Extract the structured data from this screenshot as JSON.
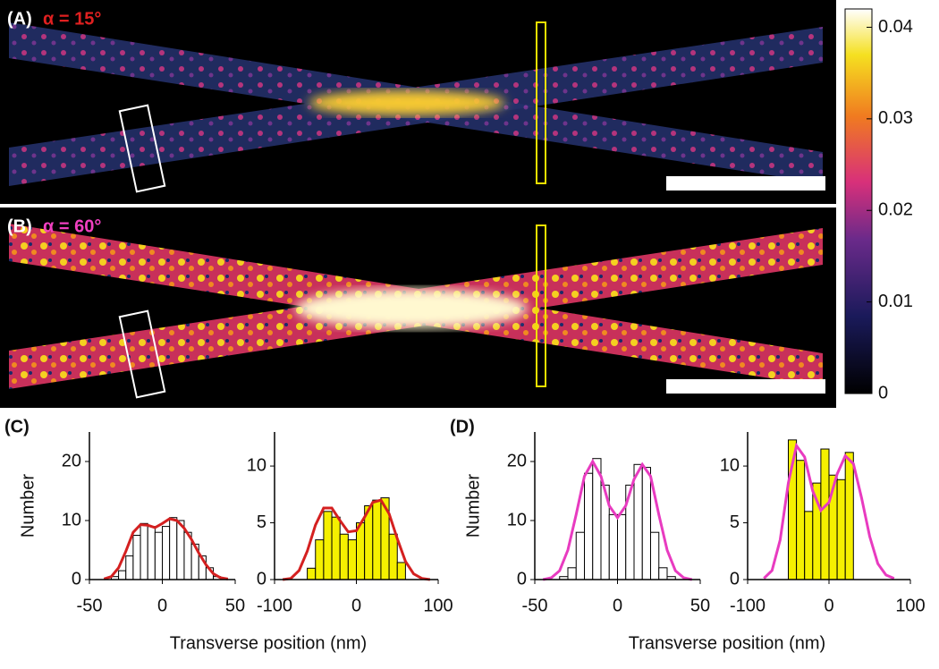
{
  "panels": [
    {
      "label": "(A)",
      "annotation": "α = 15°",
      "color": "#e02020"
    },
    {
      "label": "(B)",
      "annotation": "α = 60°",
      "color": "#f040c0"
    }
  ],
  "colorbar": {
    "ylim": [
      0,
      0.042
    ],
    "yticks": [
      0,
      0.01,
      0.02,
      0.03,
      0.04
    ]
  },
  "chart_data": [
    {
      "type": "histogram",
      "label": "(C)",
      "ylabel": "Number",
      "xlabel": "Transverse position (nm)",
      "color": "#ffffff",
      "bins": [
        -35,
        -30,
        -25,
        -20,
        -15,
        -10,
        -5,
        0,
        5,
        10,
        15,
        20,
        25,
        30,
        35,
        40
      ],
      "values": [
        0.5,
        1.5,
        4,
        7.5,
        9.5,
        9,
        8,
        9,
        10.5,
        10,
        8,
        6,
        4,
        2,
        0.5
      ],
      "fit": {
        "color": "#d42020",
        "x": [
          -40,
          -35,
          -30,
          -25,
          -20,
          -15,
          -10,
          -5,
          0,
          5,
          10,
          15,
          20,
          25,
          30,
          35,
          40,
          45
        ],
        "values": [
          0.1,
          0.5,
          2,
          4.8,
          8,
          9.3,
          9.2,
          8.8,
          9.5,
          10.3,
          10,
          8.7,
          6.8,
          4.5,
          2.5,
          1,
          0.3,
          0.1
        ]
      },
      "xlim": [
        -50,
        50
      ],
      "xticks": [
        -50,
        0,
        50
      ],
      "ylim": [
        0,
        25
      ],
      "yticks": [
        0,
        10,
        20
      ]
    },
    {
      "type": "histogram",
      "color": "#f5f000",
      "bins": [
        -60,
        -50,
        -40,
        -30,
        -20,
        -10,
        0,
        10,
        20,
        30,
        40,
        50,
        60
      ],
      "values": [
        1,
        3.5,
        6,
        5.5,
        4,
        3.5,
        5,
        6.5,
        7,
        7.2,
        4,
        1.5
      ],
      "fit": {
        "color": "#d42020",
        "x": [
          -90,
          -80,
          -70,
          -60,
          -50,
          -40,
          -30,
          -20,
          -10,
          0,
          10,
          20,
          30,
          40,
          50,
          60,
          70,
          80,
          90
        ],
        "values": [
          0,
          0.1,
          0.8,
          2.5,
          4.8,
          6.3,
          6.3,
          5.2,
          4.2,
          4.3,
          5.5,
          6.8,
          7,
          5.8,
          3.6,
          1.6,
          0.5,
          0.1,
          0
        ]
      },
      "xlim": [
        -100,
        100
      ],
      "xticks": [
        -100,
        0,
        100
      ],
      "ylim": [
        0,
        13
      ],
      "yticks": [
        0,
        5,
        10
      ]
    },
    {
      "type": "histogram",
      "label": "(D)",
      "ylabel": "Number",
      "xlabel": "Transverse position (nm)",
      "color": "#ffffff",
      "bins": [
        -35,
        -30,
        -25,
        -20,
        -15,
        -10,
        -5,
        0,
        5,
        10,
        15,
        20,
        25,
        30,
        35
      ],
      "values": [
        0.5,
        2,
        8,
        18,
        20.5,
        16,
        11,
        11,
        16,
        19.5,
        19,
        8,
        2,
        0.5
      ],
      "fit": {
        "color": "#e83bc0",
        "x": [
          -45,
          -40,
          -35,
          -30,
          -25,
          -20,
          -15,
          -10,
          -5,
          0,
          5,
          10,
          15,
          20,
          25,
          30,
          35,
          40,
          45
        ],
        "values": [
          0,
          0.3,
          1.5,
          5,
          11,
          17.5,
          20,
          17.5,
          12.5,
          10.5,
          12.5,
          17,
          19.5,
          17.5,
          11,
          5,
          1.5,
          0.3,
          0
        ]
      },
      "xlim": [
        -50,
        50
      ],
      "xticks": [
        -50,
        0,
        50
      ],
      "ylim": [
        0,
        25
      ],
      "yticks": [
        0,
        10,
        20
      ]
    },
    {
      "type": "histogram",
      "color": "#f5f000",
      "bins": [
        -50,
        -40,
        -30,
        -20,
        -10,
        0,
        10,
        20,
        30
      ],
      "values": [
        12.3,
        10.5,
        6,
        8.5,
        11.5,
        9.2,
        8.8,
        11.2
      ],
      "fit": {
        "color": "#e83bc0",
        "x": [
          -80,
          -70,
          -60,
          -50,
          -40,
          -30,
          -20,
          -10,
          0,
          10,
          20,
          30,
          40,
          50,
          60,
          70,
          80
        ],
        "values": [
          0.1,
          0.8,
          3.5,
          8.5,
          11.8,
          10.8,
          7.8,
          6.1,
          6.8,
          9.3,
          10.9,
          10.2,
          7.2,
          3.8,
          1.4,
          0.4,
          0.1
        ]
      },
      "xlim": [
        -100,
        100
      ],
      "xticks": [
        -100,
        0,
        100
      ],
      "ylim": [
        0,
        13
      ],
      "yticks": [
        0,
        5,
        10
      ]
    }
  ]
}
